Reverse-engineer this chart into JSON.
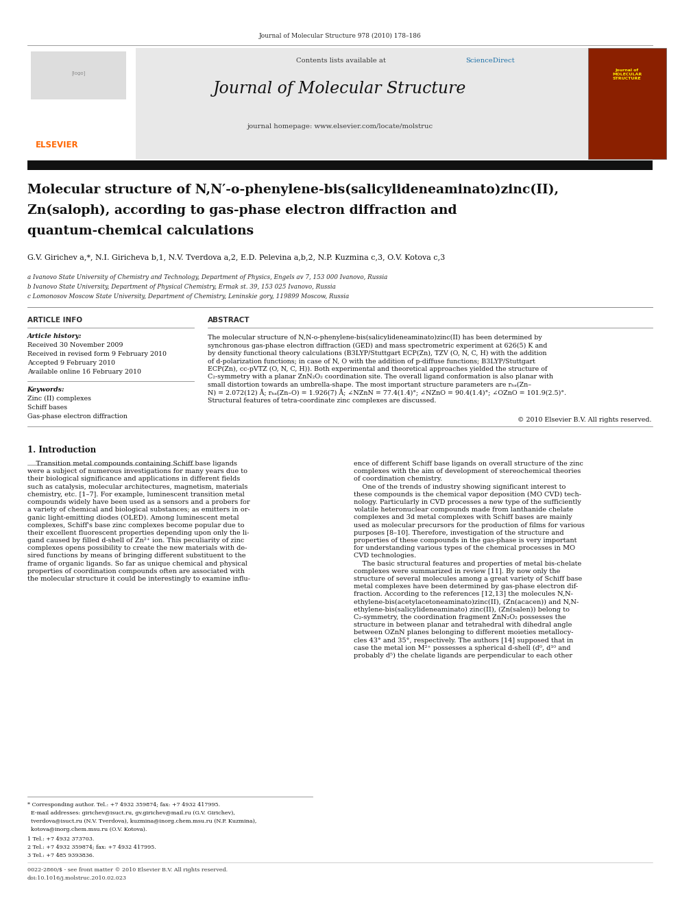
{
  "page_width": 9.92,
  "page_height": 13.23,
  "bg_color": "#ffffff",
  "top_journal_ref": "Journal of Molecular Structure 978 (2010) 178–186",
  "header_bg": "#e8e8e8",
  "header_contents": "Contents lists available at ScienceDirect",
  "header_sciencedirect_color": "#1a6fa8",
  "header_journal_name": "Journal of Molecular Structure",
  "header_homepage": "journal homepage: www.elsevier.com/locate/molstruc",
  "elsevier_color": "#ff6600",
  "black_bar_color": "#1a1a1a",
  "article_title_line1": "Molecular structure of N,N′-o-phenylene-bis(salicylideneaminato)zinc(II),",
  "article_title_line2": "Zn(saloph), according to gas-phase electron diffraction and",
  "article_title_line3": "quantum-chemical calculations",
  "authors": "G.V. Girichev a,*, N.I. Giricheva b,1, N.V. Tverdova a,2, E.D. Pelevina a,b,2, N.P. Kuzmina c,3, O.V. Kotova c,3",
  "affil_a": "a Ivanovo State University of Chemistry and Technology, Department of Physics, Engels av 7, 153 000 Ivanovo, Russia",
  "affil_b": "b Ivanovo State University, Department of Physical Chemistry, Ermak st. 39, 153 025 Ivanovo, Russia",
  "affil_c": "c Lomonosov Moscow State University, Department of Chemistry, Leninskie gory, 119899 Moscow, Russia",
  "article_info_header": "ARTICLE INFO",
  "abstract_header": "ABSTRACT",
  "article_history_label": "Article history:",
  "received_1": "Received 30 November 2009",
  "received_2": "Received in revised form 9 February 2010",
  "accepted": "Accepted 9 February 2010",
  "available": "Available online 16 February 2010",
  "keywords_label": "Keywords:",
  "keyword_1": "Zinc (II) complexes",
  "keyword_2": "Schiff bases",
  "keyword_3": "Gas-phase electron diffraction",
  "abstract_text_lines": [
    "The molecular structure of N,N-o-phenylene-bis(salicylideneaminato)zinc(II) has been determined by",
    "synchronous gas-phase electron diffraction (GED) and mass spectrometric experiment at 626(5) K and",
    "by density functional theory calculations (B3LYP/Stuttgart ECP(Zn), TZV (O, N, C, H) with the addition",
    "of d-polarization functions; in case of N, O with the addition of p-diffuse functions; B3LYP/Stuttgart",
    "ECP(Zn), cc-pVTZ (O, N, C, H)). Both experimental and theoretical approaches yielded the structure of",
    "C₂-symmetry with a planar ZnN₂O₂ coordination site. The overall ligand conformation is also planar with",
    "small distortion towards an umbrella-shape. The most important structure parameters are rₕₐ(Zn–",
    "N) = 2.072(12) Å; rₕₐ(Zn–O) = 1.926(7) Å; ∠NZnN = 77.4(1.4)°; ∠NZnO = 90.4(1.4)°; ∠OZnO = 101.9(2.5)°.",
    "Structural features of tetra-coordinate zinc complexes are discussed."
  ],
  "copyright": "© 2010 Elsevier B.V. All rights reserved.",
  "intro_header": "1. Introduction",
  "intro_col1_lines": [
    "    Transition metal compounds containing Schiff base ligands",
    "were a subject of numerous investigations for many years due to",
    "their biological significance and applications in different fields",
    "such as catalysis, molecular architectures, magnetism, materials",
    "chemistry, etc. [1–7]. For example, luminescent transition metal",
    "compounds widely have been used as a sensors and a probers for",
    "a variety of chemical and biological substances; as emitters in or-",
    "ganic light-emitting diodes (OLED). Among luminescent metal",
    "complexes, Schiff's base zinc complexes become popular due to",
    "their excellent fluorescent properties depending upon only the li-",
    "gand caused by filled d-shell of Zn²⁺ ion. This peculiarity of zinc",
    "complexes opens possibility to create the new materials with de-",
    "sired functions by means of bringing different substituent to the",
    "frame of organic ligands. So far as unique chemical and physical",
    "properties of coordination compounds often are associated with",
    "the molecular structure it could be interestingly to examine influ-"
  ],
  "intro_col2_lines": [
    "ence of different Schiff base ligands on overall structure of the zinc",
    "complexes with the aim of development of stereochemical theories",
    "of coordination chemistry.",
    "    One of the trends of industry showing significant interest to",
    "these compounds is the chemical vapor deposition (MO CVD) tech-",
    "nology. Particularly in CVD processes a new type of the sufficiently",
    "volatile heteronuclear compounds made from lanthanide chelate",
    "complexes and 3d metal complexes with Schiff bases are mainly",
    "used as molecular precursors for the production of films for various",
    "purposes [8–10]. Therefore, investigation of the structure and",
    "properties of these compounds in the gas-phase is very important",
    "for understanding various types of the chemical processes in MO",
    "CVD technologies.",
    "    The basic structural features and properties of metal bis-chelate",
    "complexes were summarized in review [11]. By now only the",
    "structure of several molecules among a great variety of Schiff base",
    "metal complexes have been determined by gas-phase electron dif-",
    "fraction. According to the references [12,13] the molecules N,N-",
    "ethylene-bis(acetylacetoneaminato)zinc(II), (Zn(acacen)) and N,N-",
    "ethylene-bis(salicylideneaminato) zinc(II), (Zn(salen)) belong to",
    "C₂-symmetry, the coordination fragment ZnN₂O₂ possesses the",
    "structure in between planar and tetrahedral with dihedral angle",
    "between OZnN planes belonging to different moieties metallocy-",
    "cles 43° and 35°, respectively. The authors [14] supposed that in",
    "case the metal ion M²⁺ possesses a spherical d-shell (d⁰, d¹⁰ and",
    "probably d⁵) the chelate ligands are perpendicular to each other"
  ],
  "footnote_star": "* Corresponding author. Tel.: +7 4932 359874; fax: +7 4932 417995.",
  "footnote_email": "  E-mail addresses: girichev@isuct.ru, gv.girichev@mail.ru (G.V. Girichev),",
  "footnote_email2": "  tverdova@isuct.ru (N.V. Tverdova), kuzmina@inorg.chem.msu.ru (N.P. Kuzmina),",
  "footnote_email3": "  kotova@inorg.chem.msu.ru (O.V. Kotova).",
  "footnote_1": "1 Tel.: +7 4932 373703.",
  "footnote_2": "2 Tel.: +7 4932 359874; fax: +7 4932 417995.",
  "footnote_3": "3 Tel.: +7 485 9393836.",
  "bottom_ref": "0022-2860/$ - see front matter © 2010 Elsevier B.V. All rights reserved.",
  "bottom_doi": "doi:10.1016/j.molstruc.2010.02.023"
}
